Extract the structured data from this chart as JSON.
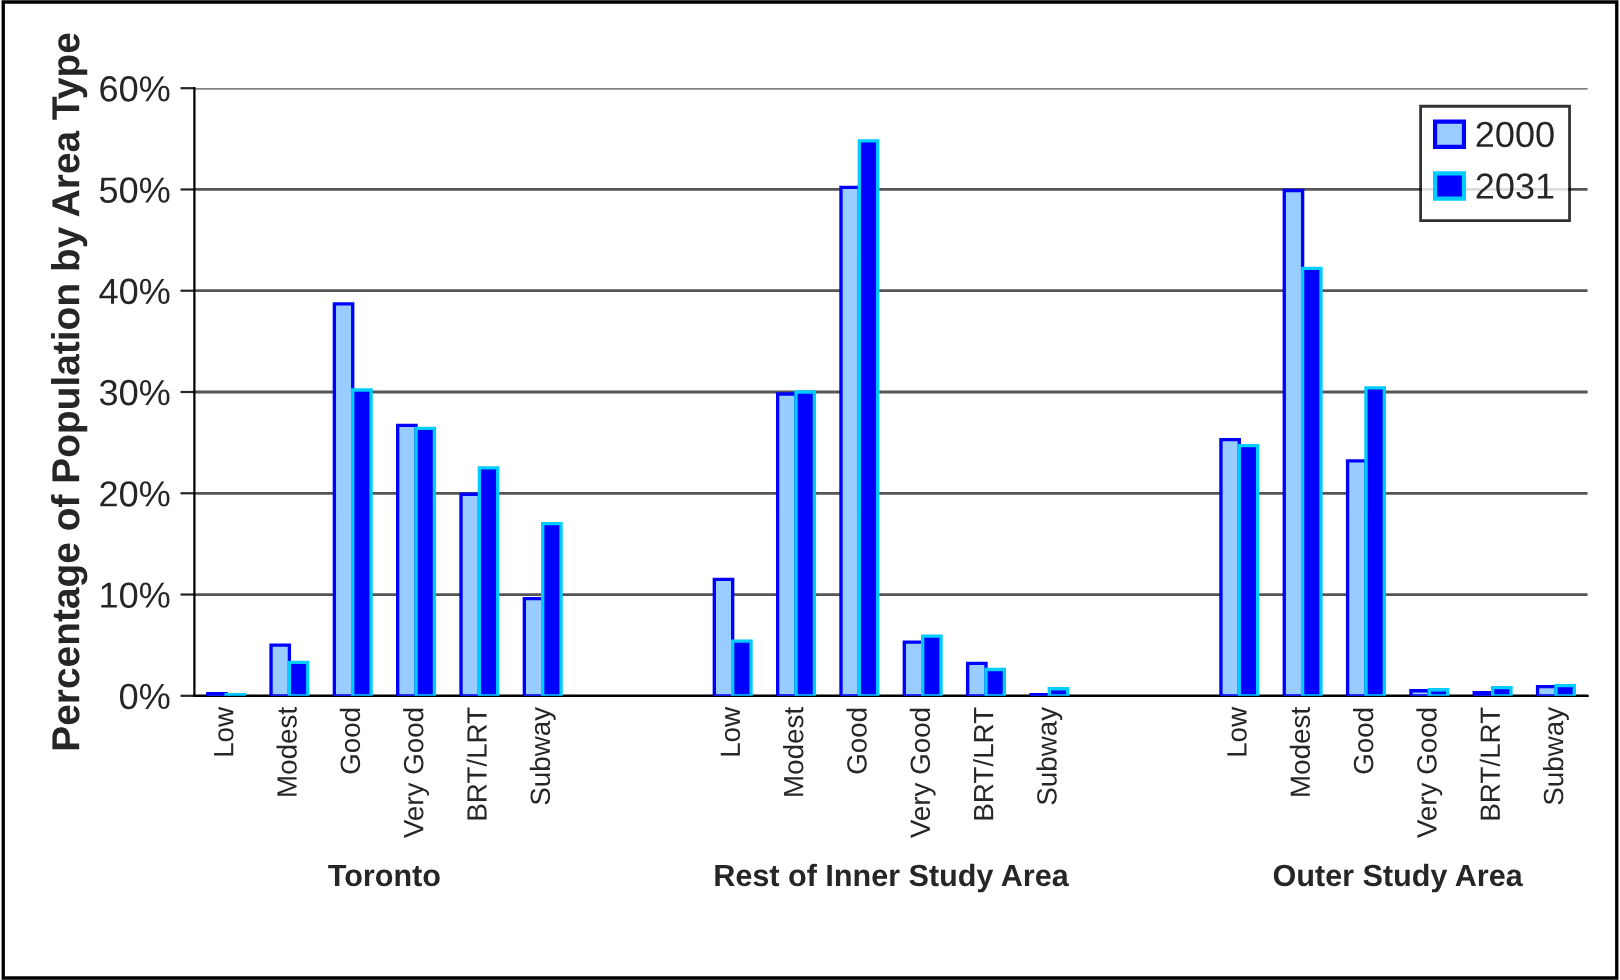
{
  "chart_data": {
    "type": "bar",
    "ylabel": "Percentage of Population by Area Type",
    "categories": [
      "Low",
      "Modest",
      "Good",
      "Very Good",
      "BRT/LRT",
      "Subway",
      null,
      null,
      "Low",
      "Modest",
      "Good",
      "Very Good",
      "BRT/LRT",
      "Subway",
      null,
      null,
      "Low",
      "Modest",
      "Good",
      "Very Good",
      "BRT/LRT",
      "Subway"
    ],
    "series": [
      {
        "name": "2000",
        "color": "#99ccff",
        "values": [
          0.2,
          5.0,
          38.7,
          26.7,
          19.9,
          9.6,
          null,
          null,
          11.5,
          29.8,
          50.2,
          5.3,
          3.2,
          0.1,
          null,
          null,
          25.3,
          49.9,
          23.2,
          0.5,
          0.3,
          0.9
        ]
      },
      {
        "name": "2031",
        "color": "#0000ff",
        "values": [
          0.1,
          3.3,
          30.2,
          26.4,
          22.5,
          17.0,
          null,
          null,
          5.4,
          30.0,
          54.8,
          5.9,
          2.6,
          0.7,
          null,
          null,
          24.7,
          42.2,
          30.4,
          0.6,
          0.8,
          1.0
        ]
      }
    ],
    "ylim": [
      0,
      60
    ],
    "yticks": [
      {
        "value": 0,
        "label": "0%"
      },
      {
        "value": 10,
        "label": "10%"
      },
      {
        "value": 20,
        "label": "20%"
      },
      {
        "value": 30,
        "label": "30%"
      },
      {
        "value": 40,
        "label": "40%"
      },
      {
        "value": 50,
        "label": "50%"
      },
      {
        "value": 60,
        "label": "60%"
      }
    ],
    "grid": "y",
    "legend": "top right",
    "annotations": [
      "Toronto",
      "Rest of Inner Study Area",
      "Outer Study Area"
    ]
  }
}
